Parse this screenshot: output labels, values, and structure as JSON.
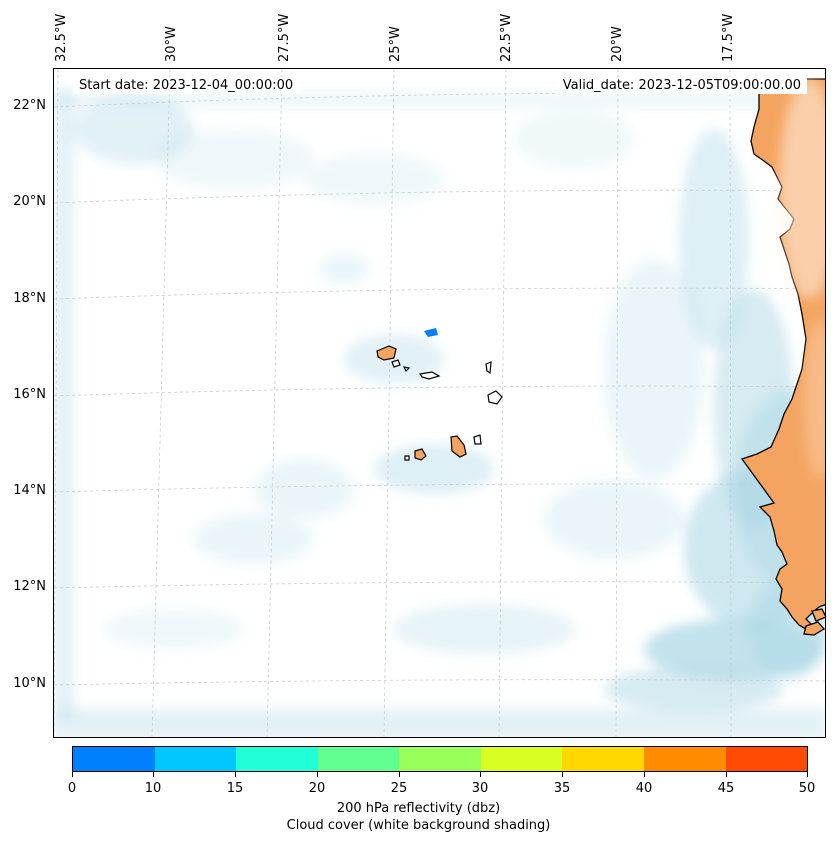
{
  "map": {
    "start_date": "Start date: 2023-12-04_00:00:00",
    "valid_date": "Valid_date: 2023-12-05T09:00:00.00",
    "lon_labels": [
      "32.5°W",
      "30°W",
      "27.5°W",
      "25°W",
      "22.5°W",
      "20°W",
      "17.5°W"
    ],
    "lat_labels": [
      "22°N",
      "20°N",
      "18°N",
      "16°N",
      "14°N",
      "12°N",
      "10°N"
    ],
    "extent": {
      "lon_min": -33.0,
      "lon_max": -15.3,
      "lat_min": 9.0,
      "lat_max": 22.8
    },
    "land_color": "#f4a460",
    "cloud_color": "#add8e6",
    "coast_color": "#000000"
  },
  "colorbar": {
    "ticks": [
      "0",
      "10",
      "15",
      "20",
      "25",
      "30",
      "35",
      "40",
      "45",
      "50"
    ],
    "colors": [
      "#0080ff",
      "#00c8ff",
      "#20ffd8",
      "#60ff90",
      "#98ff58",
      "#d8ff20",
      "#ffd800",
      "#ff8c00",
      "#ff4c00"
    ],
    "label_line1": "200 hPa reflectivity (dbz)",
    "label_line2": "Cloud cover (white background shading)"
  },
  "reflectivity_cell": {
    "lon": -24.2,
    "lat": 17.3,
    "value_range": "0-10",
    "color": "#0080ff"
  }
}
